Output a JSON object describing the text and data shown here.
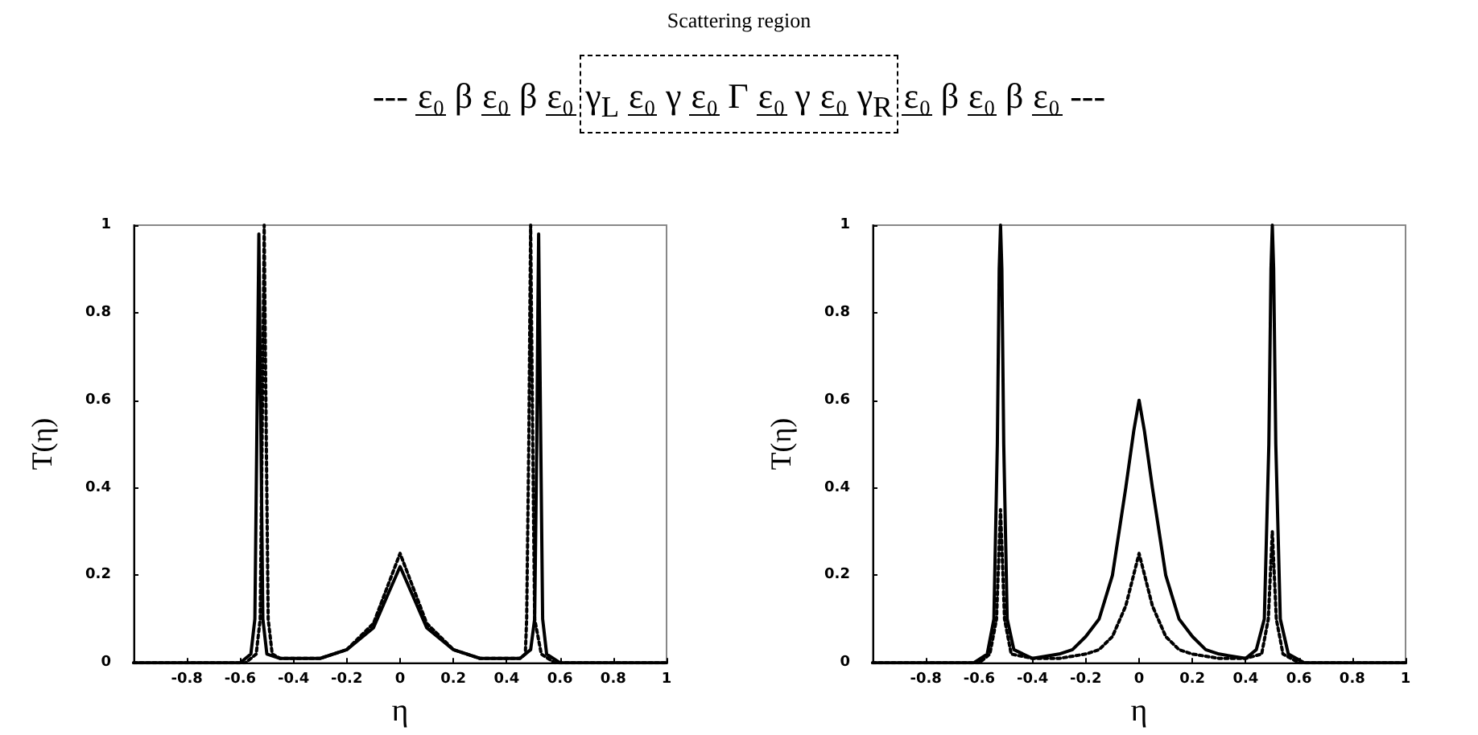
{
  "chart_data": [
    {
      "type": "other",
      "title": "Scattering region",
      "annotations": [
        "---",
        "ε₀",
        "β",
        "ε₀",
        "β",
        "ε₀",
        "γ$_{L}$",
        "ε₀",
        "γ",
        "ε₀",
        "Γ",
        "ε₀",
        "γ",
        "ε₀",
        "γ$_{R}$",
        "ε₀",
        "β",
        "ε₀",
        "β",
        "ε₀",
        "---"
      ]
    },
    {
      "type": "line",
      "xlabel": "η",
      "ylabel": "T(η)",
      "xlim": [
        -1,
        1
      ],
      "ylim": [
        0,
        1
      ],
      "xticks": [
        -0.8,
        -0.6,
        -0.4,
        -0.2,
        0,
        0.2,
        0.4,
        0.6,
        0.8,
        1
      ],
      "yticks": [
        0,
        0.2,
        0.4,
        0.6,
        0.8,
        1
      ],
      "series": [
        {
          "color": "#000000",
          "line_style": "solid",
          "x": [
            -1,
            -0.6,
            -0.56,
            -0.545,
            -0.538,
            -0.533,
            -0.53,
            -0.527,
            -0.522,
            -0.515,
            -0.5,
            -0.45,
            -0.3,
            -0.2,
            -0.1,
            -0.05,
            0,
            0.05,
            0.1,
            0.2,
            0.3,
            0.45,
            0.49,
            0.505,
            0.513,
            0.517,
            0.52,
            0.523,
            0.528,
            0.535,
            0.55,
            0.6,
            1
          ],
          "values": [
            0,
            0,
            0.02,
            0.1,
            0.5,
            0.8,
            0.98,
            0.8,
            0.5,
            0.1,
            0.02,
            0.01,
            0.01,
            0.03,
            0.08,
            0.15,
            0.22,
            0.15,
            0.08,
            0.03,
            0.01,
            0.01,
            0.03,
            0.1,
            0.5,
            0.8,
            0.98,
            0.8,
            0.5,
            0.1,
            0.02,
            0,
            0
          ]
        },
        {
          "color": "#000000",
          "line_style": "dotted",
          "x": [
            -1,
            -0.58,
            -0.54,
            -0.525,
            -0.518,
            -0.513,
            -0.51,
            -0.507,
            -0.502,
            -0.495,
            -0.48,
            -0.45,
            -0.3,
            -0.2,
            -0.1,
            -0.05,
            0,
            0.05,
            0.1,
            0.2,
            0.3,
            0.45,
            0.47,
            0.475,
            0.483,
            0.487,
            0.49,
            0.493,
            0.498,
            0.505,
            0.53,
            0.58,
            1
          ],
          "values": [
            0,
            0,
            0.02,
            0.1,
            0.5,
            0.8,
            1,
            0.8,
            0.5,
            0.1,
            0.02,
            0.01,
            0.01,
            0.03,
            0.09,
            0.17,
            0.25,
            0.17,
            0.09,
            0.03,
            0.01,
            0.01,
            0.02,
            0.1,
            0.5,
            0.8,
            1,
            0.8,
            0.5,
            0.1,
            0.02,
            0,
            0
          ]
        }
      ]
    },
    {
      "type": "line",
      "xlabel": "η",
      "ylabel": "T(η)",
      "xlim": [
        -1,
        1
      ],
      "ylim": [
        0,
        1
      ],
      "xticks": [
        -0.8,
        -0.6,
        -0.4,
        -0.2,
        0,
        0.2,
        0.4,
        0.6,
        0.8,
        1
      ],
      "yticks": [
        0,
        0.2,
        0.4,
        0.6,
        0.8,
        1
      ],
      "series": [
        {
          "color": "#000000",
          "line_style": "solid",
          "x": [
            -1,
            -0.62,
            -0.57,
            -0.545,
            -0.532,
            -0.525,
            -0.52,
            -0.515,
            -0.508,
            -0.495,
            -0.47,
            -0.4,
            -0.3,
            -0.25,
            -0.2,
            -0.15,
            -0.1,
            -0.05,
            -0.02,
            0,
            0.02,
            0.05,
            0.1,
            0.15,
            0.2,
            0.25,
            0.3,
            0.4,
            0.44,
            0.47,
            0.487,
            0.495,
            0.5,
            0.505,
            0.513,
            0.53,
            0.56,
            0.62,
            1
          ],
          "values": [
            0,
            0,
            0.02,
            0.1,
            0.5,
            0.9,
            1,
            0.9,
            0.5,
            0.1,
            0.03,
            0.01,
            0.02,
            0.03,
            0.06,
            0.1,
            0.2,
            0.4,
            0.53,
            0.6,
            0.53,
            0.4,
            0.2,
            0.1,
            0.06,
            0.03,
            0.02,
            0.01,
            0.03,
            0.1,
            0.5,
            0.9,
            1,
            0.9,
            0.5,
            0.1,
            0.02,
            0,
            0
          ]
        },
        {
          "color": "#000000",
          "line_style": "dotted",
          "x": [
            -1,
            -0.6,
            -0.56,
            -0.535,
            -0.52,
            -0.505,
            -0.48,
            -0.4,
            -0.3,
            -0.2,
            -0.15,
            -0.1,
            -0.05,
            0,
            0.05,
            0.1,
            0.15,
            0.2,
            0.3,
            0.4,
            0.46,
            0.485,
            0.5,
            0.515,
            0.54,
            0.6,
            1
          ],
          "values": [
            0,
            0,
            0.02,
            0.1,
            0.35,
            0.1,
            0.02,
            0.01,
            0.01,
            0.02,
            0.03,
            0.06,
            0.13,
            0.25,
            0.13,
            0.06,
            0.03,
            0.02,
            0.01,
            0.01,
            0.02,
            0.1,
            0.3,
            0.1,
            0.02,
            0,
            0
          ]
        }
      ]
    }
  ]
}
